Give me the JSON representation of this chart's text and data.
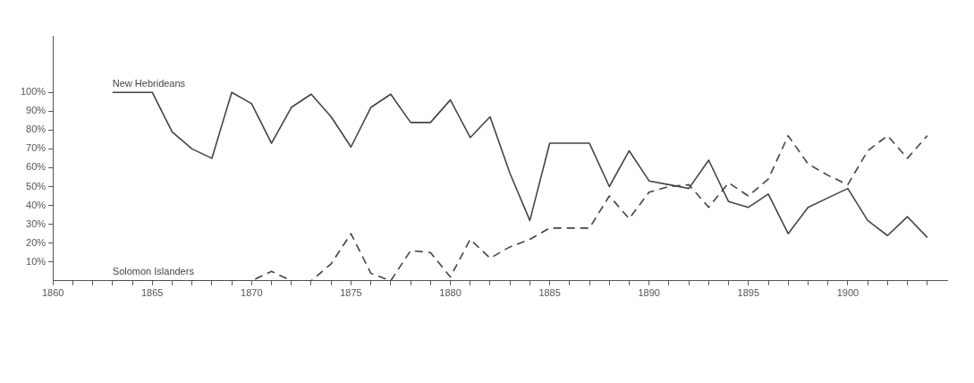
{
  "chart_data": {
    "type": "line",
    "x": [
      1863,
      1864,
      1865,
      1866,
      1867,
      1868,
      1869,
      1870,
      1871,
      1872,
      1873,
      1874,
      1875,
      1876,
      1877,
      1878,
      1879,
      1880,
      1881,
      1882,
      1883,
      1884,
      1885,
      1886,
      1887,
      1888,
      1889,
      1890,
      1891,
      1892,
      1893,
      1894,
      1895,
      1896,
      1897,
      1898,
      1899,
      1900,
      1901,
      1902,
      1903,
      1904
    ],
    "series": [
      {
        "name": "New Hebrideans",
        "color": "#444444",
        "line_style": "solid",
        "values": [
          100,
          100,
          100,
          79,
          70,
          65,
          100,
          94,
          73,
          92,
          99,
          87,
          71,
          92,
          99,
          84,
          84,
          96,
          76,
          87,
          57,
          32,
          73,
          73,
          73,
          50,
          69,
          53,
          51,
          49,
          64,
          42,
          39,
          46,
          25,
          39,
          44,
          49,
          32,
          24,
          34,
          23
        ]
      },
      {
        "name": "Solomon Islanders",
        "color": "#444444",
        "line_style": "dashed",
        "values": [
          0,
          0,
          0,
          0,
          0,
          0,
          0,
          0,
          5,
          0,
          0,
          9,
          25,
          4,
          0,
          16,
          15,
          2,
          22,
          12,
          18,
          22,
          28,
          28,
          28,
          45,
          33,
          47,
          50,
          51,
          39,
          52,
          45,
          54,
          77,
          62,
          56,
          51,
          69,
          77,
          65,
          77
        ]
      }
    ],
    "xlim": [
      1860,
      1905
    ],
    "xticks": [
      1860,
      {
        "value": 1861,
        "label": null
      },
      {
        "value": 1862,
        "label": null
      },
      {
        "value": 1863,
        "label": null
      },
      {
        "value": 1864,
        "label": null
      },
      1865,
      {
        "value": 1866,
        "label": null
      },
      {
        "value": 1867,
        "label": null
      },
      {
        "value": 1868,
        "label": null
      },
      {
        "value": 1869,
        "label": null
      },
      1870,
      {
        "value": 1871,
        "label": null
      },
      {
        "value": 1872,
        "label": null
      },
      {
        "value": 1873,
        "label": null
      },
      {
        "value": 1874,
        "label": null
      },
      1875,
      {
        "value": 1876,
        "label": null
      },
      {
        "value": 1877,
        "label": null
      },
      {
        "value": 1878,
        "label": null
      },
      {
        "value": 1879,
        "label": null
      },
      1880,
      {
        "value": 1881,
        "label": null
      },
      {
        "value": 1882,
        "label": null
      },
      {
        "value": 1883,
        "label": null
      },
      {
        "value": 1884,
        "label": null
      },
      1885,
      {
        "value": 1886,
        "label": null
      },
      {
        "value": 1887,
        "label": null
      },
      {
        "value": 1888,
        "label": null
      },
      {
        "value": 1889,
        "label": null
      },
      1890,
      {
        "value": 1891,
        "label": null
      },
      {
        "value": 1892,
        "label": null
      },
      {
        "value": 1893,
        "label": null
      },
      {
        "value": 1894,
        "label": null
      },
      1895,
      {
        "value": 1896,
        "label": null
      },
      {
        "value": 1897,
        "label": null
      },
      {
        "value": 1898,
        "label": null
      },
      {
        "value": 1899,
        "label": null
      },
      1900,
      {
        "value": 1901,
        "label": null
      },
      {
        "value": 1902,
        "label": null
      },
      {
        "value": 1903,
        "label": null
      },
      {
        "value": 1904,
        "label": null
      }
    ],
    "ylim": [
      0,
      130
    ],
    "yticks": [
      {
        "value": 10,
        "label": "10%"
      },
      {
        "value": 20,
        "label": "20%"
      },
      {
        "value": 30,
        "label": "30%"
      },
      {
        "value": 40,
        "label": "40%"
      },
      {
        "value": 50,
        "label": "50%"
      },
      {
        "value": 60,
        "label": "60%"
      },
      {
        "value": 70,
        "label": "70%"
      },
      {
        "value": 80,
        "label": "80%"
      },
      {
        "value": 90,
        "label": "90%"
      },
      {
        "value": 100,
        "label": "100%"
      }
    ],
    "grid": false,
    "legend": false,
    "marker": "none"
  }
}
